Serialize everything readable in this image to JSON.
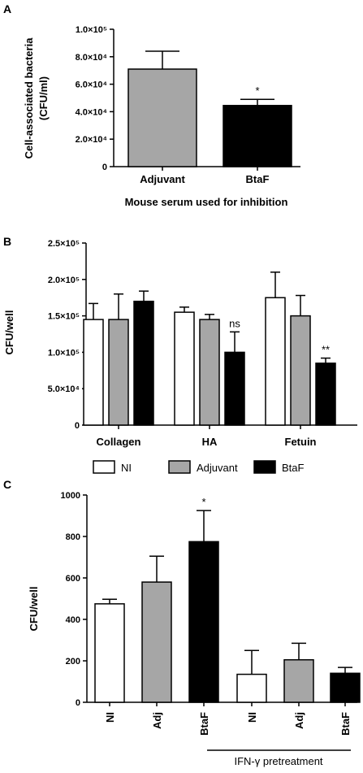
{
  "panels": {
    "A": {
      "letter": "A"
    },
    "B": {
      "letter": "B"
    },
    "C": {
      "letter": "C"
    }
  },
  "legend": {
    "items": [
      {
        "label": "NI",
        "color": "#ffffff"
      },
      {
        "label": "Adjuvant",
        "color": "#a6a6a6"
      },
      {
        "label": "BtaF",
        "color": "#000000"
      }
    ]
  },
  "chart_data": [
    {
      "panel": "A",
      "type": "bar",
      "ylabel": "Cell-associated bacteria (CFU/ml)",
      "ylabel_lines": [
        "Cell-associated bacteria",
        "(CFU/ml)"
      ],
      "xlabel": "Mouse serum used for inhibition",
      "categories": [
        "Adjuvant",
        "BtaF"
      ],
      "values": [
        71000,
        44500
      ],
      "errors": [
        13000,
        4500
      ],
      "colors": [
        "#a6a6a6",
        "#000000"
      ],
      "annotations": [
        "",
        "*"
      ],
      "ylim": [
        0,
        100000
      ],
      "yticks": [
        {
          "value": 0,
          "label": "0"
        },
        {
          "value": 20000,
          "label": "2.0×10⁴"
        },
        {
          "value": 40000,
          "label": "4.0×10⁴"
        },
        {
          "value": 60000,
          "label": "6.0×10⁴"
        },
        {
          "value": 80000,
          "label": "8.0×10⁴"
        },
        {
          "value": 100000,
          "label": "1.0×10⁵"
        }
      ]
    },
    {
      "panel": "B",
      "type": "bar",
      "ylabel": "CFU/well",
      "categories": [
        "Collagen",
        "HA",
        "Fetuin"
      ],
      "series": [
        {
          "name": "NI",
          "color": "#ffffff",
          "values": [
            145000,
            155000,
            175000
          ],
          "errors": [
            22000,
            7000,
            35000
          ],
          "annotations": [
            "",
            "",
            ""
          ]
        },
        {
          "name": "Adjuvant",
          "color": "#a6a6a6",
          "values": [
            145000,
            145000,
            150000
          ],
          "errors": [
            35000,
            7000,
            28000
          ],
          "annotations": [
            "",
            "",
            ""
          ]
        },
        {
          "name": "BtaF",
          "color": "#000000",
          "values": [
            170000,
            100000,
            85000
          ],
          "errors": [
            14000,
            28000,
            7000
          ],
          "annotations": [
            "",
            "ns",
            "**"
          ]
        }
      ],
      "ylim": [
        0,
        250000
      ],
      "yticks": [
        {
          "value": 0,
          "label": "0"
        },
        {
          "value": 50000,
          "label": "5.0×10⁴"
        },
        {
          "value": 100000,
          "label": "1.0×10⁵"
        },
        {
          "value": 150000,
          "label": "1.5×10⁵"
        },
        {
          "value": 200000,
          "label": "2.0×10⁵"
        },
        {
          "value": 250000,
          "label": "2.5×10⁵"
        }
      ]
    },
    {
      "panel": "C",
      "type": "bar",
      "ylabel": "CFU/well",
      "categories": [
        "NI",
        "Adj",
        "BtaF",
        "NI",
        "Adj",
        "BtaF"
      ],
      "values": [
        475,
        580,
        775,
        135,
        205,
        140
      ],
      "errors": [
        22,
        125,
        150,
        115,
        80,
        28
      ],
      "colors": [
        "#ffffff",
        "#a6a6a6",
        "#000000",
        "#ffffff",
        "#a6a6a6",
        "#000000"
      ],
      "annotations": [
        "",
        "",
        "*",
        "",
        "",
        ""
      ],
      "group_label": "IFN-γ pretreatment",
      "ylim": [
        0,
        1000
      ],
      "yticks": [
        {
          "value": 0,
          "label": "0"
        },
        {
          "value": 200,
          "label": "200"
        },
        {
          "value": 400,
          "label": "400"
        },
        {
          "value": 600,
          "label": "600"
        },
        {
          "value": 800,
          "label": "800"
        },
        {
          "value": 1000,
          "label": "1000"
        }
      ]
    }
  ]
}
